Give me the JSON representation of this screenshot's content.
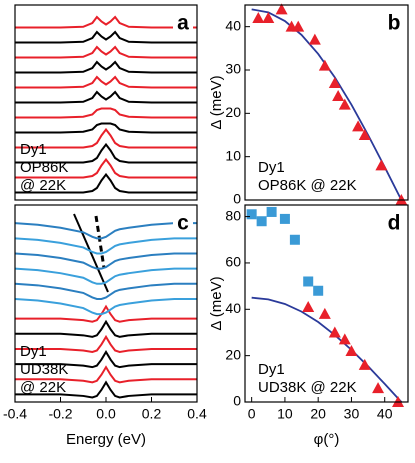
{
  "chart_data": [
    {
      "type": "line",
      "label": "a",
      "annotations": [
        "Dy1",
        "OP86K",
        "@ 22K"
      ],
      "xlim": [
        -0.4,
        0.4
      ],
      "ylim": [
        0,
        13
      ],
      "x": [
        -0.4,
        -0.3,
        -0.2,
        -0.1,
        -0.06,
        -0.04,
        -0.02,
        0,
        0.02,
        0.04,
        0.06,
        0.1,
        0.2,
        0.3,
        0.4
      ],
      "series": [
        {
          "color": "#000000",
          "values": [
            0.5,
            0.5,
            0.5,
            0.5,
            0.6,
            0.8,
            1.3,
            1.7,
            1.3,
            0.8,
            0.6,
            0.5,
            0.5,
            0.5,
            0.5
          ]
        },
        {
          "color": "#e8202a",
          "values": [
            1.5,
            1.5,
            1.5,
            1.5,
            1.6,
            1.8,
            2.3,
            2.7,
            2.3,
            1.8,
            1.6,
            1.5,
            1.5,
            1.5,
            1.5
          ]
        },
        {
          "color": "#000000",
          "values": [
            2.5,
            2.5,
            2.5,
            2.5,
            2.6,
            2.8,
            3.3,
            3.7,
            3.3,
            2.8,
            2.6,
            2.5,
            2.5,
            2.5,
            2.5
          ]
        },
        {
          "color": "#e8202a",
          "values": [
            3.5,
            3.5,
            3.5,
            3.5,
            3.6,
            3.8,
            4.3,
            4.7,
            4.3,
            3.8,
            3.6,
            3.5,
            3.5,
            3.5,
            3.5
          ]
        },
        {
          "color": "#000000",
          "values": [
            4.5,
            4.5,
            4.5,
            4.55,
            4.7,
            5,
            5.1,
            5.1,
            5.1,
            5,
            4.7,
            4.55,
            4.5,
            4.5,
            4.5
          ]
        },
        {
          "color": "#e8202a",
          "values": [
            5.5,
            5.5,
            5.5,
            5.55,
            5.7,
            6,
            6.1,
            6.1,
            6.1,
            6,
            5.7,
            5.55,
            5.5,
            5.5,
            5.5
          ]
        },
        {
          "color": "#000000",
          "values": [
            6.5,
            6.5,
            6.5,
            6.55,
            6.8,
            7.2,
            6.9,
            6.7,
            6.9,
            7.2,
            6.8,
            6.55,
            6.5,
            6.5,
            6.5
          ]
        },
        {
          "color": "#e8202a",
          "values": [
            7.5,
            7.5,
            7.5,
            7.55,
            7.8,
            8.2,
            7.9,
            7.7,
            7.9,
            8.2,
            7.8,
            7.55,
            7.5,
            7.5,
            7.5
          ]
        },
        {
          "color": "#000000",
          "values": [
            8.5,
            8.5,
            8.5,
            8.55,
            8.8,
            9.2,
            8.9,
            8.7,
            8.9,
            9.2,
            8.8,
            8.55,
            8.5,
            8.5,
            8.5
          ]
        },
        {
          "color": "#e8202a",
          "values": [
            9.5,
            9.5,
            9.5,
            9.55,
            9.8,
            10.2,
            9.9,
            9.7,
            9.9,
            10.2,
            9.8,
            9.55,
            9.5,
            9.5,
            9.5
          ]
        },
        {
          "color": "#000000",
          "values": [
            10.5,
            10.5,
            10.5,
            10.55,
            10.8,
            11.2,
            10.9,
            10.7,
            10.9,
            11.2,
            10.8,
            10.55,
            10.5,
            10.5,
            10.5
          ]
        },
        {
          "color": "#e8202a",
          "values": [
            11.5,
            11.5,
            11.5,
            11.55,
            11.8,
            12.2,
            11.9,
            11.7,
            11.9,
            12.2,
            11.8,
            11.55,
            11.5,
            11.5,
            11.5
          ]
        }
      ]
    },
    {
      "type": "scatter",
      "label": "b",
      "annotations": [
        "Dy1",
        "OP86K @ 22K"
      ],
      "y_label": "Δ (meV)",
      "xlim": [
        -2,
        47
      ],
      "ylim": [
        0,
        45
      ],
      "yticks": [
        0,
        10,
        20,
        30,
        40
      ],
      "series": [
        {
          "marker": "triangle",
          "color": "#e8202a",
          "x": [
            2,
            5,
            9,
            12,
            14,
            19,
            22,
            25,
            26,
            28,
            32,
            34,
            39,
            45
          ],
          "values": [
            42,
            42,
            44,
            40,
            40,
            37,
            31,
            27,
            24,
            22,
            17,
            15,
            8,
            0
          ]
        },
        {
          "marker": "line",
          "color": "#2a3a9a",
          "x": [
            0,
            5,
            10,
            15,
            20,
            25,
            30,
            35,
            40,
            45
          ],
          "values": [
            44,
            43.3,
            41.3,
            38.1,
            33.7,
            28.3,
            22,
            15,
            7.6,
            0
          ]
        }
      ]
    },
    {
      "type": "line",
      "label": "c",
      "annotations": [
        "Dy1",
        "UD38K",
        "@ 22K"
      ],
      "x_label": "Energy (eV)",
      "xlim": [
        -0.4,
        0.4
      ],
      "ylim": [
        0,
        13
      ],
      "xticks": [
        -0.4,
        -0.2,
        {
          "value": 0,
          "label": "0.0"
        },
        0.2,
        0.4
      ],
      "x": [
        -0.4,
        -0.3,
        -0.2,
        -0.1,
        -0.06,
        -0.04,
        -0.02,
        0,
        0.02,
        0.04,
        0.06,
        0.1,
        0.2,
        0.3,
        0.4
      ],
      "series": [
        {
          "color": "#000000",
          "values": [
            0.5,
            0.5,
            0.5,
            0.4,
            0.3,
            0.4,
            0.8,
            1.3,
            0.8,
            0.4,
            0.3,
            0.4,
            0.5,
            0.5,
            0.5
          ]
        },
        {
          "color": "#e8202a",
          "values": [
            1.5,
            1.5,
            1.5,
            1.4,
            1.3,
            1.4,
            1.8,
            2.3,
            1.8,
            1.4,
            1.3,
            1.4,
            1.5,
            1.5,
            1.5
          ]
        },
        {
          "color": "#000000",
          "values": [
            2.5,
            2.5,
            2.5,
            2.4,
            2.3,
            2.4,
            2.8,
            3.3,
            2.8,
            2.4,
            2.3,
            2.4,
            2.5,
            2.5,
            2.5
          ]
        },
        {
          "color": "#e8202a",
          "values": [
            3.5,
            3.5,
            3.5,
            3.4,
            3.3,
            3.4,
            3.8,
            4.3,
            3.8,
            3.4,
            3.3,
            3.4,
            3.5,
            3.5,
            3.5
          ]
        },
        {
          "color": "#000000",
          "values": [
            4.5,
            4.5,
            4.5,
            4.4,
            4.3,
            4.4,
            4.8,
            5.3,
            4.8,
            4.4,
            4.3,
            4.4,
            4.5,
            4.5,
            4.5
          ]
        },
        {
          "color": "#e8202a",
          "values": [
            5.5,
            5.5,
            5.5,
            5.4,
            5.3,
            5.4,
            5.8,
            6.3,
            5.8,
            5.4,
            5.3,
            5.4,
            5.5,
            5.5,
            5.5
          ]
        },
        {
          "color": "#3aa0dc",
          "values": [
            6.8,
            6.7,
            6.5,
            6.2,
            5.9,
            5.8,
            5.8,
            5.9,
            6.1,
            6.3,
            6.4,
            6.5,
            6.7,
            6.8,
            6.8
          ]
        },
        {
          "color": "#2b7fc0",
          "values": [
            7.8,
            7.7,
            7.5,
            7.2,
            6.9,
            6.8,
            6.8,
            6.9,
            7.1,
            7.3,
            7.4,
            7.5,
            7.7,
            7.8,
            7.8
          ]
        },
        {
          "color": "#3aa0dc",
          "values": [
            8.8,
            8.7,
            8.5,
            8.2,
            7.9,
            7.8,
            7.8,
            7.9,
            8.1,
            8.3,
            8.4,
            8.5,
            8.7,
            8.8,
            8.8
          ]
        },
        {
          "color": "#2b7fc0",
          "values": [
            9.8,
            9.7,
            9.5,
            9.2,
            8.9,
            8.8,
            8.8,
            8.9,
            9.1,
            9.3,
            9.4,
            9.5,
            9.7,
            9.8,
            9.8
          ]
        },
        {
          "color": "#3aa0dc",
          "values": [
            10.8,
            10.7,
            10.5,
            10.2,
            9.9,
            9.8,
            9.8,
            9.9,
            10.1,
            10.3,
            10.4,
            10.5,
            10.7,
            10.8,
            10.8
          ]
        },
        {
          "color": "#2b7fc0",
          "values": [
            11.8,
            11.7,
            11.5,
            11.2,
            10.9,
            10.8,
            10.8,
            10.9,
            11.1,
            11.3,
            11.4,
            11.5,
            11.7,
            11.8,
            11.8
          ]
        }
      ]
    },
    {
      "type": "scatter",
      "label": "d",
      "annotations": [
        "Dy1",
        "UD38K @ 22K"
      ],
      "x_label": "φ(°)",
      "y_label": "Δ (meV)",
      "xlim": [
        -2,
        47
      ],
      "ylim": [
        0,
        85
      ],
      "xticks": [
        0,
        10,
        20,
        30,
        40
      ],
      "yticks": [
        0,
        20,
        40,
        60,
        80
      ],
      "series": [
        {
          "marker": "square",
          "color": "#3a9ad6",
          "x": [
            0,
            3,
            6,
            10,
            13,
            17,
            20
          ],
          "values": [
            81,
            78,
            82,
            79,
            70,
            52,
            48
          ]
        },
        {
          "marker": "triangle",
          "color": "#e8202a",
          "x": [
            17,
            22,
            25,
            28,
            30,
            34,
            38,
            44
          ],
          "values": [
            41,
            38,
            30,
            27,
            22,
            16,
            6,
            0
          ]
        },
        {
          "marker": "line",
          "color": "#2a3a9a",
          "x": [
            0,
            5,
            10,
            15,
            20,
            25,
            30,
            35,
            40,
            45
          ],
          "values": [
            45,
            44.3,
            42.3,
            39,
            34.5,
            28.9,
            22.5,
            15.4,
            7.8,
            0
          ]
        }
      ]
    }
  ]
}
